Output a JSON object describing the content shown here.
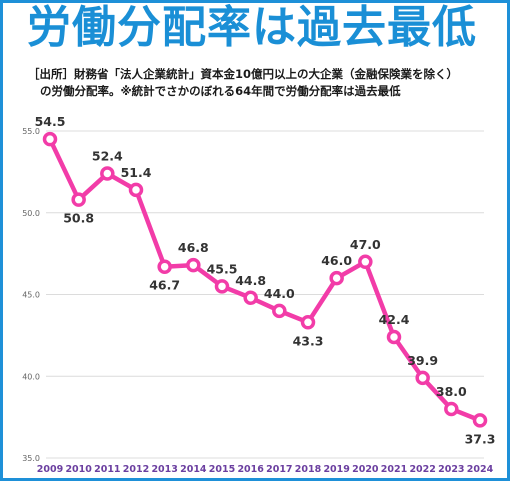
{
  "title": "労働分配率は過去最低",
  "source_line1": "［出所］財務省「法人企業統計」資本金10億円以上の大企業（金融保険業を除く）",
  "source_line2": "の労働分配率。※統計でさかのぼれる64年間で労働分配率は過去最低",
  "colors": {
    "title": "#1a8fd6",
    "border": "#1e90d8",
    "line": "#f23ca8",
    "marker_fill": "#ffffff",
    "x_tick": "#6b3fa0"
  },
  "chart_data": {
    "type": "line",
    "title": "労働分配率は過去最低",
    "xlabel": "",
    "ylabel": "",
    "ylim": [
      35.0,
      55.0
    ],
    "yticks": [
      "35.0",
      "40.0",
      "45.0",
      "50.0",
      "55.0"
    ],
    "grid": true,
    "legend": "none",
    "categories": [
      "2009",
      "2010",
      "2011",
      "2012",
      "2013",
      "2014",
      "2015",
      "2016",
      "2017",
      "2018",
      "2019",
      "2020",
      "2021",
      "2022",
      "2023",
      "2024"
    ],
    "values": [
      54.5,
      50.8,
      52.4,
      51.4,
      46.7,
      46.8,
      45.5,
      44.8,
      44.0,
      43.3,
      46.0,
      47.0,
      42.4,
      39.9,
      38.0,
      37.3
    ],
    "labels": [
      "54.5",
      "50.8",
      "52.4",
      "51.4",
      "46.7",
      "46.8",
      "45.5",
      "44.8",
      "44.0",
      "43.3",
      "46.0",
      "47.0",
      "42.4",
      "39.9",
      "38.0",
      "37.3"
    ]
  }
}
